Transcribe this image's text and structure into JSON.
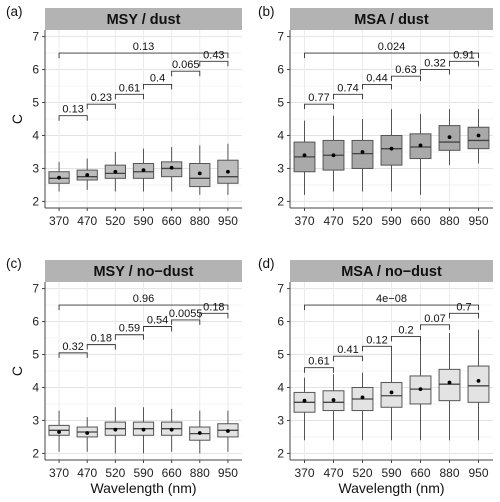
{
  "chart_data": [
    {
      "type": "box",
      "panel_label": "(a)",
      "title": "MSY / dust",
      "ylabel": "C",
      "xlabel": "",
      "categories": [
        "370",
        "470",
        "520",
        "590",
        "660",
        "880",
        "950"
      ],
      "ylim": [
        1.8,
        7.2
      ],
      "yticks": [
        2,
        3,
        4,
        5,
        6,
        7
      ],
      "fill": "#bdbdbd",
      "boxes": [
        {
          "min": 2.3,
          "q1": 2.55,
          "median": 2.7,
          "q3": 2.9,
          "max": 3.2,
          "mean": 2.72
        },
        {
          "min": 2.35,
          "q1": 2.65,
          "median": 2.75,
          "q3": 2.95,
          "max": 3.3,
          "mean": 2.8
        },
        {
          "min": 2.3,
          "q1": 2.7,
          "median": 2.85,
          "q3": 3.1,
          "max": 3.5,
          "mean": 2.9
        },
        {
          "min": 2.3,
          "q1": 2.7,
          "median": 2.9,
          "q3": 3.15,
          "max": 3.6,
          "mean": 2.95
        },
        {
          "min": 2.3,
          "q1": 2.75,
          "median": 3.0,
          "q3": 3.2,
          "max": 3.65,
          "mean": 3.02
        },
        {
          "min": 2.2,
          "q1": 2.45,
          "median": 2.7,
          "q3": 3.15,
          "max": 3.7,
          "mean": 2.85
        },
        {
          "min": 2.2,
          "q1": 2.55,
          "median": 2.75,
          "q3": 3.25,
          "max": 3.75,
          "mean": 2.9
        }
      ],
      "comparisons": [
        {
          "from": 0,
          "to": 6,
          "label": "0.13",
          "y": 6.5
        },
        {
          "from": 0,
          "to": 1,
          "label": "0.13",
          "y": 4.6
        },
        {
          "from": 1,
          "to": 2,
          "label": "0.23",
          "y": 4.95
        },
        {
          "from": 2,
          "to": 3,
          "label": "0.61",
          "y": 5.25
        },
        {
          "from": 3,
          "to": 4,
          "label": "0.4",
          "y": 5.55
        },
        {
          "from": 4,
          "to": 5,
          "label": "0.065",
          "y": 5.95
        },
        {
          "from": 5,
          "to": 6,
          "label": "0.43",
          "y": 6.25
        }
      ]
    },
    {
      "type": "box",
      "panel_label": "(b)",
      "title": "MSA / dust",
      "ylabel": "",
      "xlabel": "",
      "categories": [
        "370",
        "470",
        "520",
        "590",
        "660",
        "880",
        "950"
      ],
      "ylim": [
        1.8,
        7.2
      ],
      "yticks": [
        2,
        3,
        4,
        5,
        6,
        7
      ],
      "fill": "#a9a9a9",
      "boxes": [
        {
          "min": 2.2,
          "q1": 2.9,
          "median": 3.35,
          "q3": 3.8,
          "max": 4.45,
          "mean": 3.4
        },
        {
          "min": 2.3,
          "q1": 2.95,
          "median": 3.4,
          "q3": 3.85,
          "max": 4.6,
          "mean": 3.4
        },
        {
          "min": 2.3,
          "q1": 3.0,
          "median": 3.45,
          "q3": 3.85,
          "max": 4.5,
          "mean": 3.5
        },
        {
          "min": 2.3,
          "q1": 3.1,
          "median": 3.6,
          "q3": 4.0,
          "max": 4.8,
          "mean": 3.6
        },
        {
          "min": 2.2,
          "q1": 3.3,
          "median": 3.65,
          "q3": 4.05,
          "max": 4.65,
          "mean": 3.7
        },
        {
          "min": 3.1,
          "q1": 3.55,
          "median": 3.8,
          "q3": 4.3,
          "max": 4.8,
          "mean": 3.95
        },
        {
          "min": 3.15,
          "q1": 3.6,
          "median": 3.85,
          "q3": 4.25,
          "max": 4.8,
          "mean": 4.0
        }
      ],
      "comparisons": [
        {
          "from": 0,
          "to": 6,
          "label": "0.024",
          "y": 6.5
        },
        {
          "from": 0,
          "to": 1,
          "label": "0.77",
          "y": 4.95
        },
        {
          "from": 1,
          "to": 2,
          "label": "0.74",
          "y": 5.25
        },
        {
          "from": 2,
          "to": 3,
          "label": "0.44",
          "y": 5.55
        },
        {
          "from": 3,
          "to": 4,
          "label": "0.63",
          "y": 5.8
        },
        {
          "from": 4,
          "to": 5,
          "label": "0.32",
          "y": 6.0
        },
        {
          "from": 5,
          "to": 6,
          "label": "0.91",
          "y": 6.25
        }
      ]
    },
    {
      "type": "box",
      "panel_label": "(c)",
      "title": "MSY / no−dust",
      "ylabel": "C",
      "xlabel": "Wavelength (nm)",
      "categories": [
        "370",
        "470",
        "520",
        "590",
        "660",
        "880",
        "950"
      ],
      "ylim": [
        1.8,
        7.2
      ],
      "yticks": [
        2,
        3,
        4,
        5,
        6,
        7
      ],
      "fill": "#e3e3e3",
      "boxes": [
        {
          "min": 2.05,
          "q1": 2.55,
          "median": 2.7,
          "q3": 2.85,
          "max": 3.3,
          "mean": 2.65
        },
        {
          "min": 2.05,
          "q1": 2.5,
          "median": 2.65,
          "q3": 2.8,
          "max": 3.1,
          "mean": 2.62
        },
        {
          "min": 2.0,
          "q1": 2.55,
          "median": 2.75,
          "q3": 2.95,
          "max": 3.4,
          "mean": 2.72
        },
        {
          "min": 2.0,
          "q1": 2.55,
          "median": 2.75,
          "q3": 2.95,
          "max": 3.4,
          "mean": 2.72
        },
        {
          "min": 2.05,
          "q1": 2.55,
          "median": 2.75,
          "q3": 2.95,
          "max": 3.35,
          "mean": 2.72
        },
        {
          "min": 2.0,
          "q1": 2.4,
          "median": 2.6,
          "q3": 2.8,
          "max": 3.3,
          "mean": 2.62
        },
        {
          "min": 2.05,
          "q1": 2.5,
          "median": 2.7,
          "q3": 2.9,
          "max": 3.3,
          "mean": 2.68
        }
      ],
      "comparisons": [
        {
          "from": 0,
          "to": 6,
          "label": "0.96",
          "y": 6.5
        },
        {
          "from": 0,
          "to": 1,
          "label": "0.32",
          "y": 5.05
        },
        {
          "from": 1,
          "to": 2,
          "label": "0.18",
          "y": 5.3
        },
        {
          "from": 2,
          "to": 3,
          "label": "0.59",
          "y": 5.6
        },
        {
          "from": 3,
          "to": 4,
          "label": "0.54",
          "y": 5.85
        },
        {
          "from": 4,
          "to": 5,
          "label": "0.0055",
          "y": 6.05
        },
        {
          "from": 5,
          "to": 6,
          "label": "0.18",
          "y": 6.25
        }
      ]
    },
    {
      "type": "box",
      "panel_label": "(d)",
      "title": "MSA / no−dust",
      "ylabel": "",
      "xlabel": "Wavelength (nm)",
      "categories": [
        "370",
        "470",
        "520",
        "590",
        "660",
        "880",
        "950"
      ],
      "ylim": [
        1.8,
        7.2
      ],
      "yticks": [
        2,
        3,
        4,
        5,
        6,
        7
      ],
      "fill": "#e3e3e3",
      "boxes": [
        {
          "min": 2.4,
          "q1": 3.25,
          "median": 3.55,
          "q3": 3.85,
          "max": 4.3,
          "mean": 3.6
        },
        {
          "min": 2.4,
          "q1": 3.3,
          "median": 3.55,
          "q3": 3.9,
          "max": 4.4,
          "mean": 3.62
        },
        {
          "min": 2.4,
          "q1": 3.3,
          "median": 3.65,
          "q3": 4.0,
          "max": 4.45,
          "mean": 3.7
        },
        {
          "min": 2.4,
          "q1": 3.4,
          "median": 3.75,
          "q3": 4.15,
          "max": 5.1,
          "mean": 3.85
        },
        {
          "min": 2.4,
          "q1": 3.5,
          "median": 3.95,
          "q3": 4.35,
          "max": 5.5,
          "mean": 3.95
        },
        {
          "min": 2.4,
          "q1": 3.6,
          "median": 4.1,
          "q3": 4.55,
          "max": 5.65,
          "mean": 4.15
        },
        {
          "min": 2.4,
          "q1": 3.55,
          "median": 4.05,
          "q3": 4.65,
          "max": 5.75,
          "mean": 4.2
        }
      ],
      "comparisons": [
        {
          "from": 0,
          "to": 6,
          "label": "4e−08",
          "y": 6.5
        },
        {
          "from": 0,
          "to": 1,
          "label": "0.61",
          "y": 4.6
        },
        {
          "from": 1,
          "to": 2,
          "label": "0.41",
          "y": 4.95
        },
        {
          "from": 2,
          "to": 3,
          "label": "0.12",
          "y": 5.25
        },
        {
          "from": 3,
          "to": 4,
          "label": "0.2",
          "y": 5.55
        },
        {
          "from": 4,
          "to": 5,
          "label": "0.07",
          "y": 5.9
        },
        {
          "from": 5,
          "to": 6,
          "label": "0.7",
          "y": 6.25
        }
      ]
    }
  ]
}
